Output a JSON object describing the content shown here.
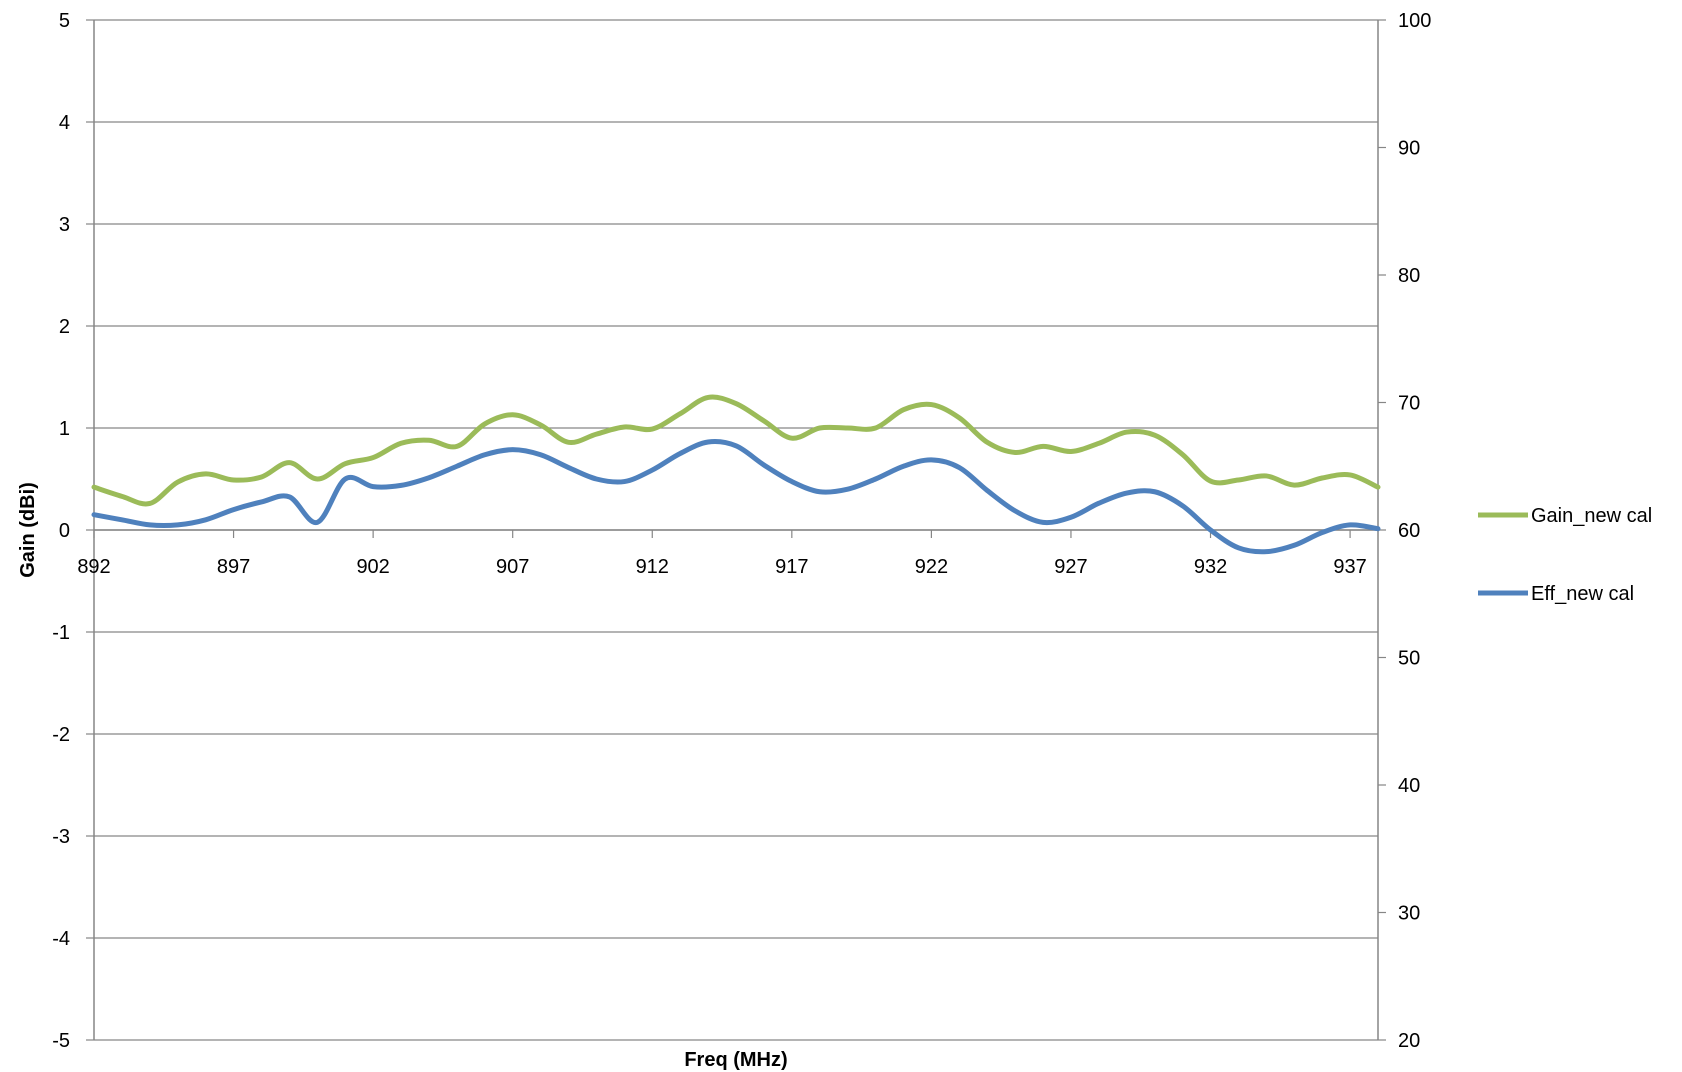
{
  "chart_data": {
    "type": "line",
    "title": "",
    "xlabel": "Freq (MHz)",
    "ylabel": "Gain (dBi)",
    "y2label": "",
    "x_ticks": [
      "892",
      "897",
      "902",
      "907",
      "912",
      "917",
      "922",
      "927",
      "932",
      "937"
    ],
    "xlim": [
      892,
      938
    ],
    "ylim": [
      -5,
      5
    ],
    "y_ticks": [
      "5",
      "4",
      "3",
      "2",
      "1",
      "0",
      "-1",
      "-2",
      "-3",
      "-4",
      "-5"
    ],
    "y2lim": [
      20,
      100
    ],
    "y2_ticks": [
      "100",
      "90",
      "80",
      "70",
      "60",
      "50",
      "40",
      "30",
      "20"
    ],
    "grid": true,
    "legend_position": "right",
    "series": [
      {
        "name": "Gain_new cal",
        "axis": "left",
        "color": "#9BBB59",
        "x": [
          892,
          893,
          894,
          895,
          896,
          897,
          898,
          899,
          900,
          901,
          902,
          903,
          904,
          905,
          906,
          907,
          908,
          909,
          910,
          911,
          912,
          913,
          914,
          915,
          916,
          917,
          918,
          919,
          920,
          921,
          922,
          923,
          924,
          925,
          926,
          927,
          928,
          929,
          930,
          931,
          932,
          933,
          934,
          935,
          936,
          937,
          938
        ],
        "values": [
          0.42,
          0.33,
          0.26,
          0.47,
          0.55,
          0.49,
          0.52,
          0.66,
          0.5,
          0.65,
          0.71,
          0.85,
          0.88,
          0.82,
          1.04,
          1.13,
          1.03,
          0.86,
          0.94,
          1.01,
          0.99,
          1.14,
          1.3,
          1.24,
          1.07,
          0.9,
          1.0,
          1.0,
          1.0,
          1.18,
          1.23,
          1.1,
          0.86,
          0.76,
          0.82,
          0.77,
          0.85,
          0.96,
          0.93,
          0.74,
          0.48,
          0.49,
          0.53,
          0.44,
          0.51,
          0.54,
          0.42
        ]
      },
      {
        "name": "Eff_new cal",
        "axis": "right",
        "color": "#4F81BD",
        "x": [
          892,
          893,
          894,
          895,
          896,
          897,
          898,
          899,
          900,
          901,
          902,
          903,
          904,
          905,
          906,
          907,
          908,
          909,
          910,
          911,
          912,
          913,
          914,
          915,
          916,
          917,
          918,
          919,
          920,
          921,
          922,
          923,
          924,
          925,
          926,
          927,
          928,
          929,
          930,
          931,
          932,
          933,
          934,
          935,
          936,
          937,
          938
        ],
        "values": [
          61.2,
          60.8,
          60.4,
          60.4,
          60.8,
          61.6,
          62.2,
          62.6,
          60.6,
          64.0,
          63.4,
          63.5,
          64.1,
          65.0,
          65.9,
          66.3,
          65.9,
          64.9,
          64.0,
          63.8,
          64.7,
          66.0,
          66.9,
          66.6,
          65.1,
          63.8,
          63.0,
          63.2,
          64.0,
          65.0,
          65.5,
          64.9,
          63.1,
          61.5,
          60.6,
          61.0,
          62.1,
          62.9,
          63.0,
          61.9,
          60.0,
          58.6,
          58.3,
          58.8,
          59.8,
          60.4,
          60.1
        ]
      }
    ]
  }
}
